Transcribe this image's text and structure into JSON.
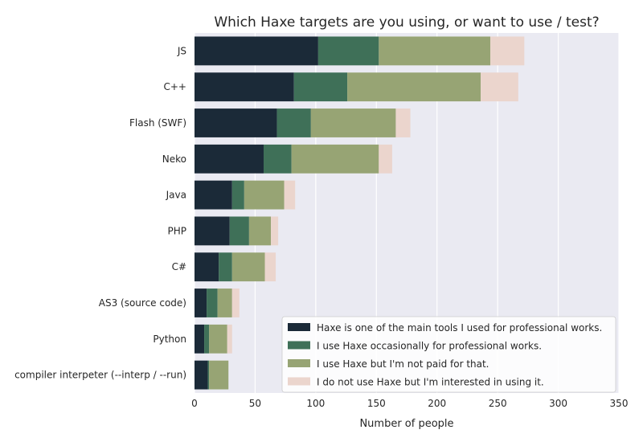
{
  "chart_data": {
    "type": "bar",
    "orientation": "horizontal",
    "stacked": true,
    "title": "Which Haxe targets are you using, or want to use / test?",
    "xlabel": "Number of people",
    "ylabel": "",
    "xlim": [
      0,
      350
    ],
    "xticks": [
      0,
      50,
      100,
      150,
      200,
      250,
      300,
      350
    ],
    "grid": true,
    "legend_position": "bottom-right",
    "categories": [
      "JS",
      "C++",
      "Flash (SWF)",
      "Neko",
      "Java",
      "PHP",
      "C#",
      "AS3 (source code)",
      "Python",
      "compiler interpeter (--interp / --run)"
    ],
    "series": [
      {
        "name": "Haxe is one of the main tools I used for professional works.",
        "color": "#1b2a38",
        "values": [
          102,
          82,
          68,
          57,
          31,
          29,
          20,
          10,
          8,
          11
        ]
      },
      {
        "name": "I use Haxe occasionally for professional works.",
        "color": "#3f7058",
        "values": [
          50,
          44,
          28,
          23,
          10,
          16,
          11,
          9,
          4,
          1
        ]
      },
      {
        "name": "I use Haxe but I'm not paid for that.",
        "color": "#97a474",
        "values": [
          92,
          110,
          70,
          72,
          33,
          18,
          27,
          12,
          15,
          16
        ]
      },
      {
        "name": "I do not use Haxe but I'm interested in using it.",
        "color": "#ebd5cd",
        "values": [
          28,
          31,
          12,
          11,
          9,
          6,
          9,
          6,
          4,
          0
        ]
      }
    ]
  }
}
